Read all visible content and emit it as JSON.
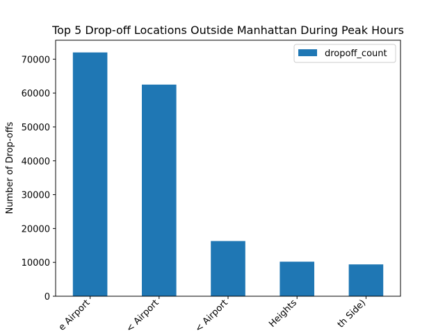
{
  "chart_data": {
    "type": "bar",
    "title": "Top 5 Drop-off Locations Outside Manhattan During Peak Hours",
    "xlabel": "",
    "ylabel": "Number of Drop-offs",
    "categories": [
      "e Airport",
      "< Airport",
      "< Airport",
      "Heights",
      "th Side)"
    ],
    "series": [
      {
        "name": "dropoff_count",
        "values": [
          72000,
          62500,
          16300,
          10200,
          9400
        ],
        "color": "#1f77b4"
      }
    ],
    "ylim": [
      0,
      75600
    ],
    "yticks": [
      0,
      10000,
      20000,
      30000,
      40000,
      50000,
      60000,
      70000
    ],
    "grid": false,
    "legend_position": "top-right"
  }
}
